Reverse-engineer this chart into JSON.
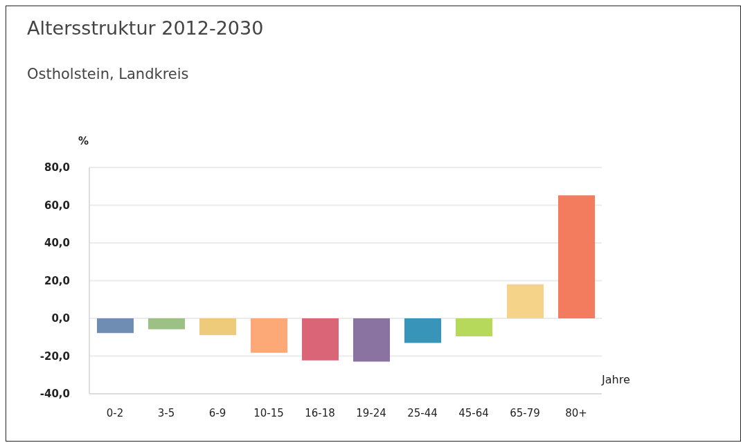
{
  "chart_data": {
    "type": "bar",
    "title": "Altersstruktur 2012-2030",
    "subtitle": "Ostholstein, Landkreis",
    "xlabel": "Jahre",
    "ylabel": "%",
    "categories": [
      "0-2",
      "3-5",
      "6-9",
      "10-15",
      "16-18",
      "19-24",
      "25-44",
      "45-64",
      "65-79",
      "80+"
    ],
    "values": [
      -7.8,
      -5.8,
      -8.9,
      -18.3,
      -22.3,
      -22.9,
      -13.0,
      -9.5,
      18.1,
      65.2
    ],
    "colors": [
      "#6f8db3",
      "#9cc184",
      "#eecb7a",
      "#fda977",
      "#d96577",
      "#8a73a0",
      "#3894b8",
      "#b6d95c",
      "#f5d388",
      "#f27c5d"
    ],
    "ylim": [
      -40,
      80
    ],
    "yticks": [
      {
        "value": -40,
        "label": "-40,0"
      },
      {
        "value": -20,
        "label": "-20,0"
      },
      {
        "value": 0,
        "label": "0,0"
      },
      {
        "value": 20,
        "label": "20,0"
      },
      {
        "value": 40,
        "label": "40,0"
      },
      {
        "value": 60,
        "label": "60,0"
      },
      {
        "value": 80,
        "label": "80,0"
      }
    ],
    "grid": "y",
    "legend": false
  }
}
